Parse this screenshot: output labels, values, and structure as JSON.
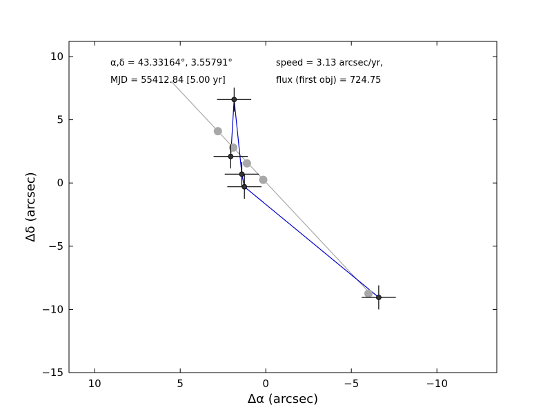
{
  "chart_data": {
    "type": "scatter",
    "title": "",
    "xlabel": "Δα (arcsec)",
    "ylabel": "Δδ (arcsec)",
    "xlim": [
      11.5,
      -13.5
    ],
    "ylim": [
      -15,
      11.2
    ],
    "x_ticks": [
      10,
      5,
      0,
      -5,
      -10
    ],
    "x_tick_labels": [
      "10",
      "5",
      "0",
      "−5",
      "−10"
    ],
    "y_ticks": [
      10,
      5,
      0,
      -5,
      -10,
      -15
    ],
    "y_tick_labels": [
      "10",
      "5",
      "0",
      "−5",
      "−10",
      "−15"
    ],
    "grid": false,
    "annotations": {
      "coords": "α,δ = 43.33164°, 3.55791°",
      "mjd": "MJD = 55412.84 [5.00 yr]",
      "speed": "speed = 3.13 arcsec/yr,",
      "flux": "flux (first obj) = 724.75"
    },
    "series": [
      {
        "kind": "model",
        "color": "#a8a8a8",
        "line_points": [
          [
            5.5,
            8.0
          ],
          [
            -6.1,
            -8.75
          ]
        ],
        "points": [
          [
            2.8,
            4.1
          ],
          [
            1.9,
            2.8
          ],
          [
            1.1,
            1.55
          ],
          [
            0.15,
            0.25
          ],
          [
            -6.0,
            -8.75
          ]
        ]
      },
      {
        "kind": "observed",
        "line_color": "#0000cc",
        "marker_color": "#333333",
        "points": [
          {
            "x": 1.85,
            "y": 6.6,
            "xerr": 1.0,
            "yerr": 0.95
          },
          {
            "x": 2.05,
            "y": 2.1,
            "xerr": 1.0,
            "yerr": 0.95
          },
          {
            "x": 1.4,
            "y": 0.7,
            "xerr": 1.0,
            "yerr": 0.95
          },
          {
            "x": 1.25,
            "y": -0.3,
            "xerr": 1.0,
            "yerr": 0.95
          },
          {
            "x": -6.6,
            "y": -9.05,
            "xerr": 1.0,
            "yerr": 0.95
          }
        ],
        "path_order": [
          1,
          0,
          2,
          3,
          4
        ]
      }
    ]
  }
}
